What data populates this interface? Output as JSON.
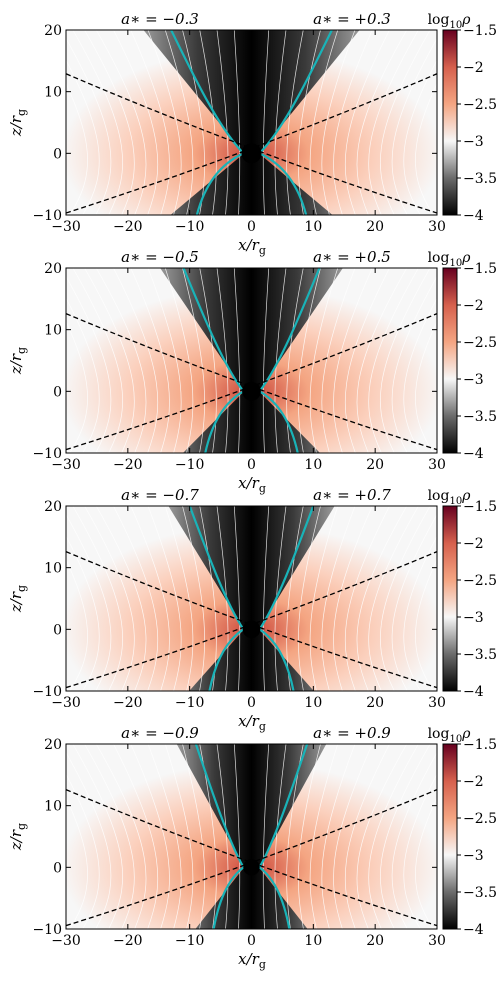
{
  "figure": {
    "x_axis_label": "x/r_g",
    "y_axis_label": "z/r_g",
    "colorbar_label": "log10 ρ"
  },
  "chart_data": [
    {
      "type": "heatmap",
      "left_label": "a∗ = −0.3",
      "right_label": "a∗ = +0.3",
      "xlim": [
        -30,
        30
      ],
      "ylim": [
        -10,
        20
      ],
      "xticks": [
        "−30",
        "−20",
        "−10",
        "0",
        "10",
        "20",
        "30"
      ],
      "yticks": [
        "−10",
        "0",
        "10",
        "20"
      ],
      "colorbar": {
        "range": [
          -4,
          -1.5
        ],
        "ticks": [
          "−1.5",
          "−2",
          "−2.5",
          "−3",
          "−3.5",
          "−4"
        ]
      },
      "jet_width": 2.6,
      "dashed_slope": 0.43,
      "disk_peak_x": 10
    },
    {
      "type": "heatmap",
      "left_label": "a∗ = −0.5",
      "right_label": "a∗ = +0.5",
      "xlim": [
        -30,
        30
      ],
      "ylim": [
        -10,
        20
      ],
      "xticks": [
        "−30",
        "−20",
        "−10",
        "0",
        "10",
        "20",
        "30"
      ],
      "yticks": [
        "−10",
        "0",
        "10",
        "20"
      ],
      "colorbar": {
        "range": [
          -4,
          -1.5
        ],
        "ticks": [
          "−1.5",
          "−2",
          "−2.5",
          "−3",
          "−3.5",
          "−4"
        ]
      },
      "jet_width": 2.2,
      "dashed_slope": 0.42,
      "disk_peak_x": 9
    },
    {
      "type": "heatmap",
      "left_label": "a∗ = −0.7",
      "right_label": "a∗ = +0.7",
      "xlim": [
        -30,
        30
      ],
      "ylim": [
        -10,
        20
      ],
      "xticks": [
        "−30",
        "−20",
        "−10",
        "0",
        "10",
        "20",
        "30"
      ],
      "yticks": [
        "−10",
        "0",
        "10",
        "20"
      ],
      "colorbar": {
        "range": [
          -4,
          -1.5
        ],
        "ticks": [
          "−1.5",
          "−2",
          "−2.5",
          "−3",
          "−3.5",
          "−4"
        ]
      },
      "jet_width": 2.0,
      "dashed_slope": 0.42,
      "disk_peak_x": 8
    },
    {
      "type": "heatmap",
      "left_label": "a∗ = −0.9",
      "right_label": "a∗ = +0.9",
      "xlim": [
        -30,
        30
      ],
      "ylim": [
        -10,
        20
      ],
      "xticks": [
        "−30",
        "−20",
        "−10",
        "0",
        "10",
        "20",
        "30"
      ],
      "yticks": [
        "−10",
        "0",
        "10",
        "20"
      ],
      "colorbar": {
        "range": [
          -4,
          -1.5
        ],
        "ticks": [
          "−1.5",
          "−2",
          "−2.5",
          "−3",
          "−3.5",
          "−4"
        ]
      },
      "jet_width": 1.8,
      "dashed_slope": 0.42,
      "disk_peak_x": 8
    }
  ]
}
